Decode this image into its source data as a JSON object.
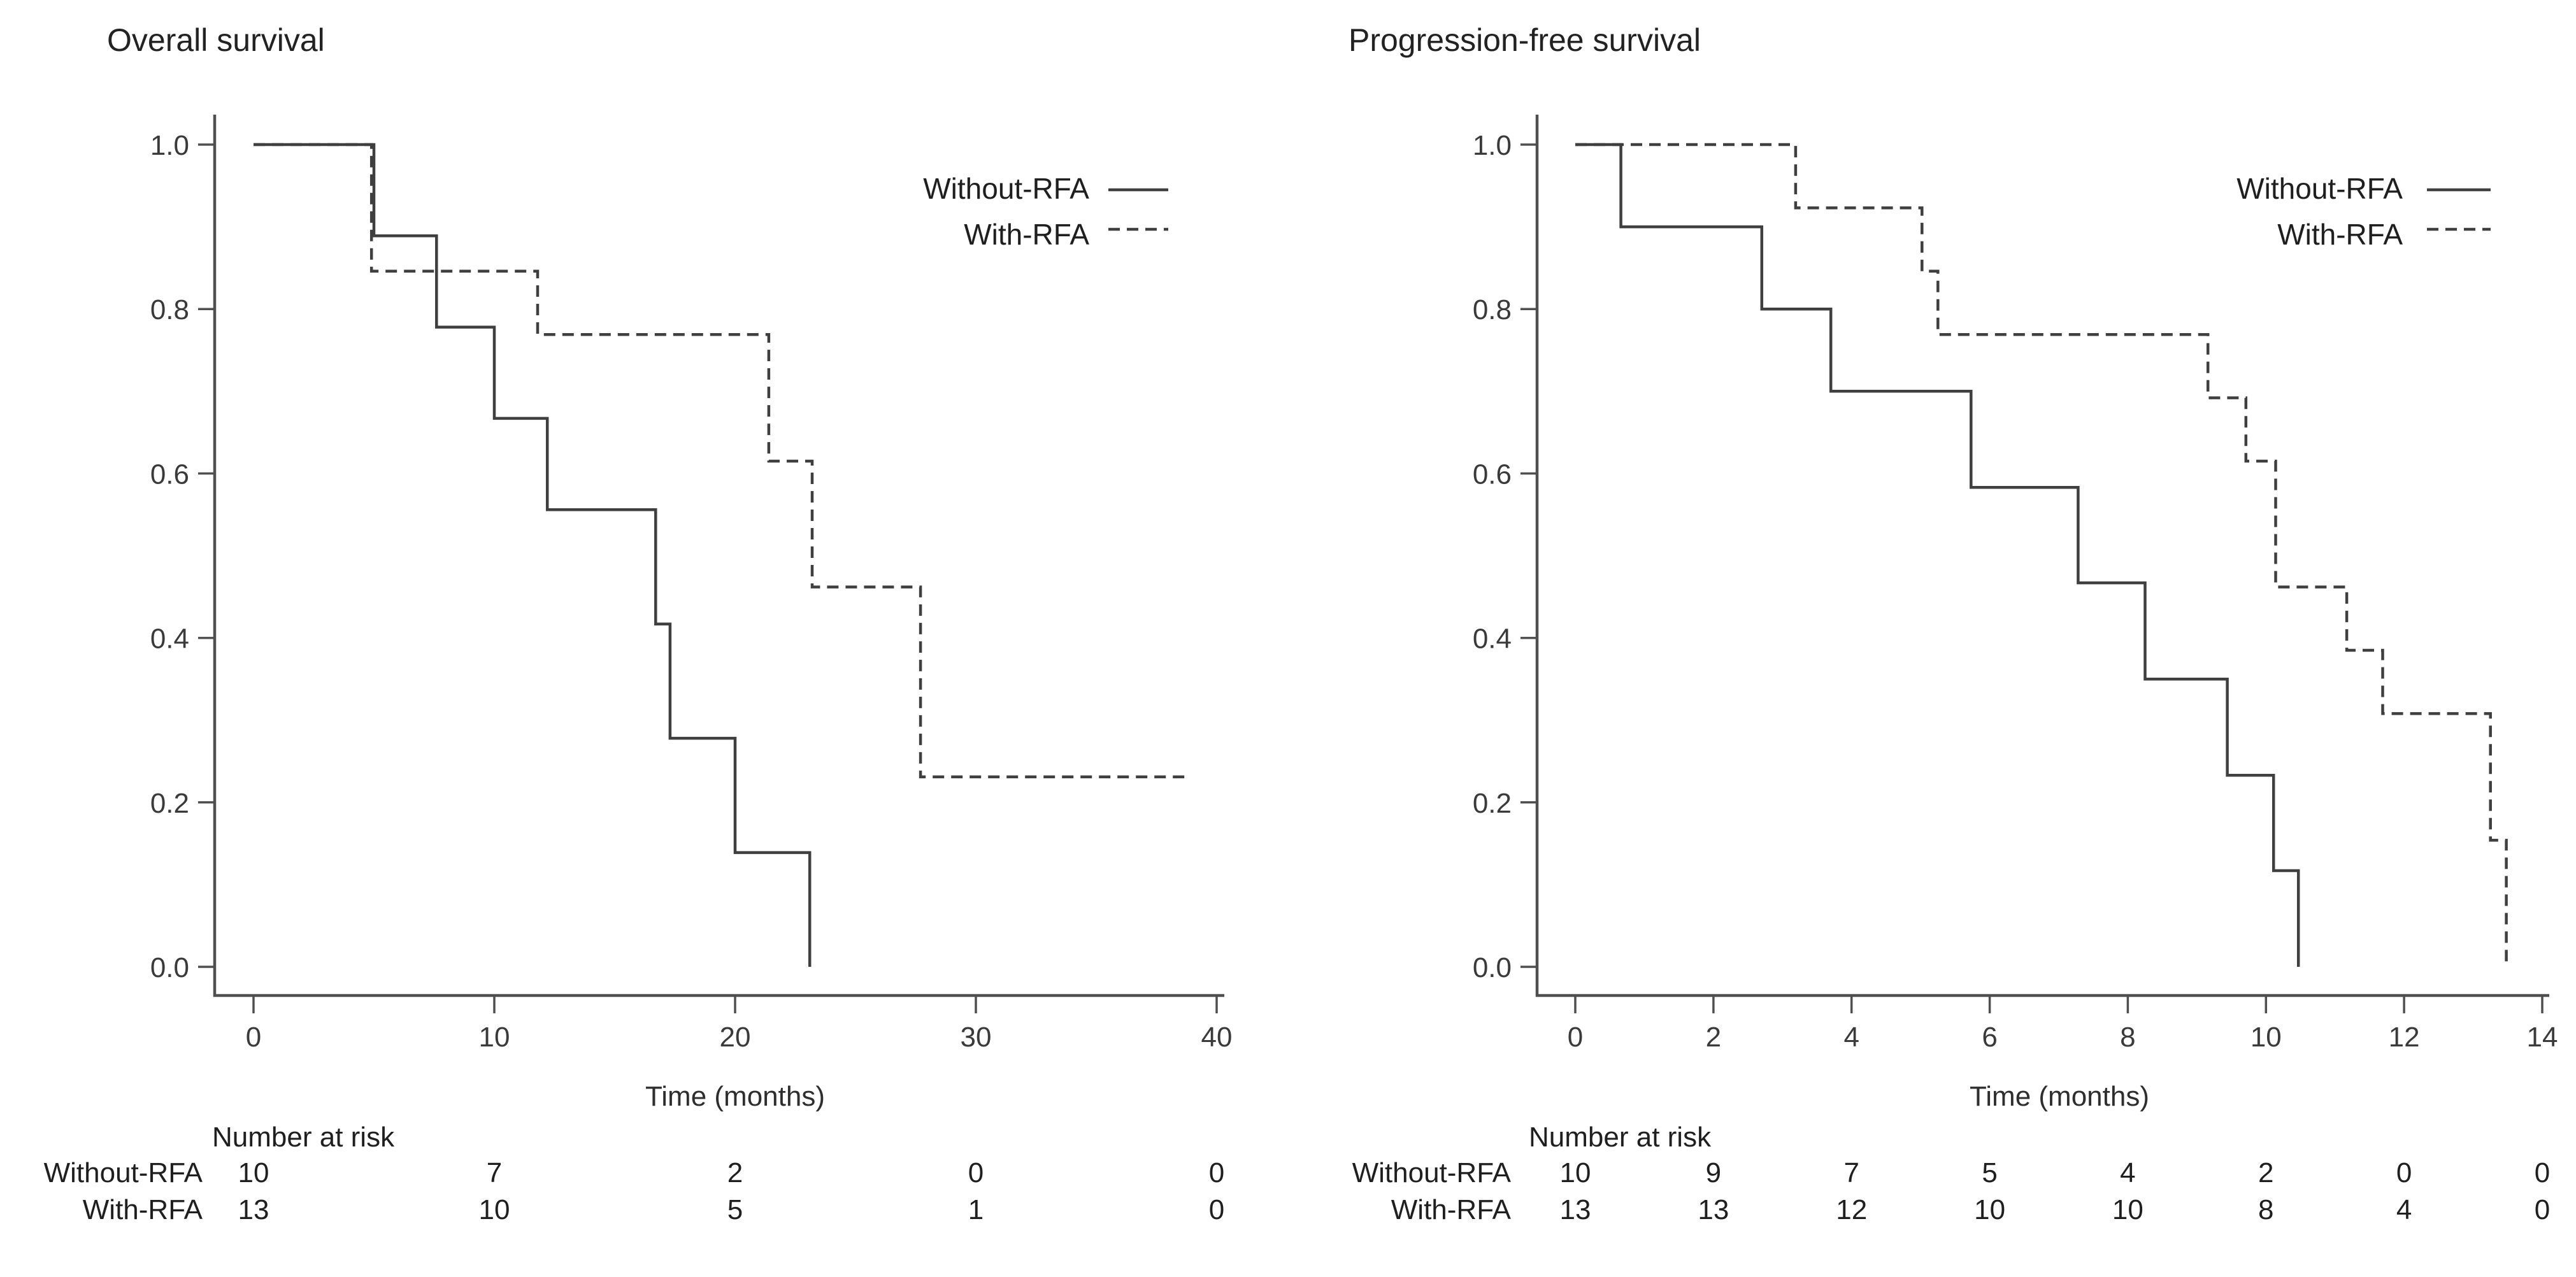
{
  "page": {
    "background": "#ffffff",
    "text_color": "#2a2a2a",
    "curve_color": "#3f3f3f",
    "axis_color": "#4f4f4f"
  },
  "chart_data": [
    {
      "type": "line",
      "subtype": "kaplan-meier-step",
      "title": "Overall survival",
      "xlabel": "Time (months)",
      "ylabel": "",
      "xlim": [
        0,
        40
      ],
      "ylim": [
        0,
        1
      ],
      "grid": false,
      "legend_position": "top-right",
      "x_ticks": [
        0,
        10,
        20,
        30,
        40
      ],
      "x_tick_labels": [
        "0",
        "10",
        "20",
        "30",
        "40"
      ],
      "y_ticks": [
        0.0,
        0.2,
        0.4,
        0.6,
        0.8,
        1.0
      ],
      "y_tick_labels": [
        "0.0",
        "0.2",
        "0.4",
        "0.6",
        "0.8",
        "1.0"
      ],
      "legend": [
        {
          "label": "Without-RFA",
          "line_style": "solid"
        },
        {
          "label": "With-RFA",
          "line_style": "dashed"
        }
      ],
      "series": [
        {
          "name": "Without-RFA",
          "line_style": "solid",
          "steps": [
            [
              0,
              1.0
            ],
            [
              5.0,
              0.889
            ],
            [
              7.6,
              0.778
            ],
            [
              10.0,
              0.667
            ],
            [
              12.2,
              0.556
            ],
            [
              16.7,
              0.417
            ],
            [
              17.3,
              0.278
            ],
            [
              20.0,
              0.139
            ],
            [
              23.1,
              0.0
            ]
          ],
          "end_time": 23.1
        },
        {
          "name": "With-RFA",
          "line_style": "dashed",
          "steps": [
            [
              0,
              1.0
            ],
            [
              4.9,
              0.846
            ],
            [
              11.8,
              0.769
            ],
            [
              21.4,
              0.615
            ],
            [
              23.2,
              0.462
            ],
            [
              27.7,
              0.231
            ]
          ],
          "end_time": 38.8
        }
      ],
      "at_risk": {
        "header": "Number at risk",
        "rows": [
          {
            "label": "Without-RFA",
            "values": [
              10,
              7,
              2,
              0,
              0
            ]
          },
          {
            "label": "With-RFA",
            "values": [
              13,
              10,
              5,
              1,
              0
            ]
          }
        ]
      }
    },
    {
      "type": "line",
      "subtype": "kaplan-meier-step",
      "title": "Progression-free survival",
      "xlabel": "Time (months)",
      "ylabel": "",
      "xlim": [
        0,
        14
      ],
      "ylim": [
        0,
        1
      ],
      "grid": false,
      "legend_position": "top-right",
      "x_ticks": [
        0,
        2,
        4,
        6,
        8,
        10,
        12,
        14
      ],
      "x_tick_labels": [
        "0",
        "2",
        "4",
        "6",
        "8",
        "10",
        "12",
        "14"
      ],
      "y_ticks": [
        0.0,
        0.2,
        0.4,
        0.6,
        0.8,
        1.0
      ],
      "y_tick_labels": [
        "0.0",
        "0.2",
        "0.4",
        "0.6",
        "0.8",
        "1.0"
      ],
      "legend": [
        {
          "label": "Without-RFA",
          "line_style": "solid"
        },
        {
          "label": "With-RFA",
          "line_style": "dashed"
        }
      ],
      "series": [
        {
          "name": "Without-RFA",
          "line_style": "solid",
          "steps": [
            [
              0,
              1.0
            ],
            [
              0.66,
              0.9
            ],
            [
              2.7,
              0.8
            ],
            [
              3.7,
              0.7
            ],
            [
              5.73,
              0.583
            ],
            [
              7.28,
              0.467
            ],
            [
              8.25,
              0.35
            ],
            [
              9.44,
              0.233
            ],
            [
              10.11,
              0.117
            ],
            [
              10.47,
              0.0
            ]
          ],
          "end_time": 10.47
        },
        {
          "name": "With-RFA",
          "line_style": "dashed",
          "steps": [
            [
              0,
              1.0
            ],
            [
              3.19,
              0.923
            ],
            [
              5.02,
              0.846
            ],
            [
              5.25,
              0.769
            ],
            [
              9.16,
              0.692
            ],
            [
              9.71,
              0.615
            ],
            [
              10.14,
              0.462
            ],
            [
              11.17,
              0.385
            ],
            [
              11.69,
              0.308
            ],
            [
              13.25,
              0.154
            ],
            [
              13.48,
              0.0
            ]
          ],
          "end_time": 13.48
        }
      ],
      "at_risk": {
        "header": "Number at risk",
        "rows": [
          {
            "label": "Without-RFA",
            "values": [
              10,
              9,
              7,
              5,
              4,
              2,
              0,
              0
            ]
          },
          {
            "label": "With-RFA",
            "values": [
              13,
              13,
              12,
              10,
              10,
              8,
              4,
              0
            ]
          }
        ]
      }
    }
  ]
}
